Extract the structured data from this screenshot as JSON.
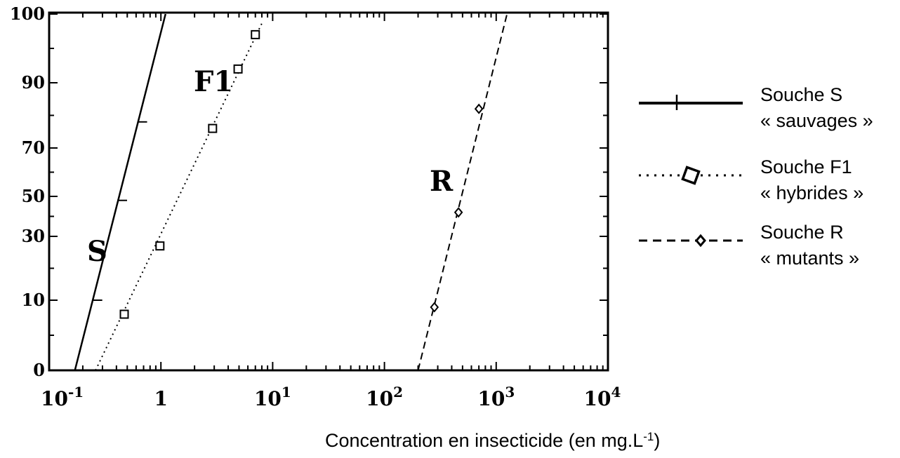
{
  "chart_data": {
    "type": "line",
    "title": "",
    "xlabel": "Concentration en insecticide (en mg.L-1)",
    "xlabel_parts": {
      "main": "Concentration en insecticide (en mg.L",
      "sup": "-1",
      "end": ")"
    },
    "ylabel": "",
    "xscale": "log",
    "xlim": [
      0.1,
      10000
    ],
    "ylim": [
      0,
      100
    ],
    "y_scale_note": "probit-like nonlinear axis",
    "grid": false,
    "x_ticks": [
      {
        "label": "10",
        "exp": "-1",
        "value": 0.1
      },
      {
        "label": "1",
        "exp": "",
        "value": 1
      },
      {
        "label": "10",
        "exp": "1",
        "value": 10
      },
      {
        "label": "10",
        "exp": "2",
        "value": 100
      },
      {
        "label": "10",
        "exp": "3",
        "value": 1000
      },
      {
        "label": "10",
        "exp": "4",
        "value": 10000
      }
    ],
    "y_ticks": [
      {
        "label": "0",
        "value": 0
      },
      {
        "label": "10",
        "value": 10
      },
      {
        "label": "30",
        "value": 30
      },
      {
        "label": "50",
        "value": 50
      },
      {
        "label": "70",
        "value": 70
      },
      {
        "label": "90",
        "value": 90
      },
      {
        "label": "100",
        "value": 100
      }
    ],
    "series": [
      {
        "name": "S",
        "style": "solid",
        "marker": "tick",
        "line": [
          [
            0.17,
            0
          ],
          [
            1.1,
            100
          ]
        ],
        "points": [
          [
            0.27,
            10
          ],
          [
            0.45,
            48
          ],
          [
            0.68,
            78
          ]
        ]
      },
      {
        "name": "F1",
        "style": "dotted",
        "marker": "square",
        "line": [
          [
            0.26,
            0
          ],
          [
            8.2,
            99
          ]
        ],
        "points": [
          [
            0.47,
            8
          ],
          [
            0.98,
            27
          ],
          [
            2.9,
            76
          ],
          [
            4.9,
            92
          ],
          [
            7.0,
            97
          ]
        ]
      },
      {
        "name": "R",
        "style": "dashed",
        "marker": "diamond",
        "line": [
          [
            200,
            0
          ],
          [
            1250,
            100
          ]
        ],
        "points": [
          [
            280,
            9
          ],
          [
            460,
            42
          ],
          [
            700,
            82
          ]
        ]
      }
    ],
    "legend": {
      "position": "right",
      "entries": [
        {
          "line1": "Souche S",
          "line2": "« sauvages »"
        },
        {
          "line1": "Souche F1",
          "line2": "« hybrides »"
        },
        {
          "line1": "Souche R",
          "line2": "« mutants »"
        }
      ]
    }
  }
}
